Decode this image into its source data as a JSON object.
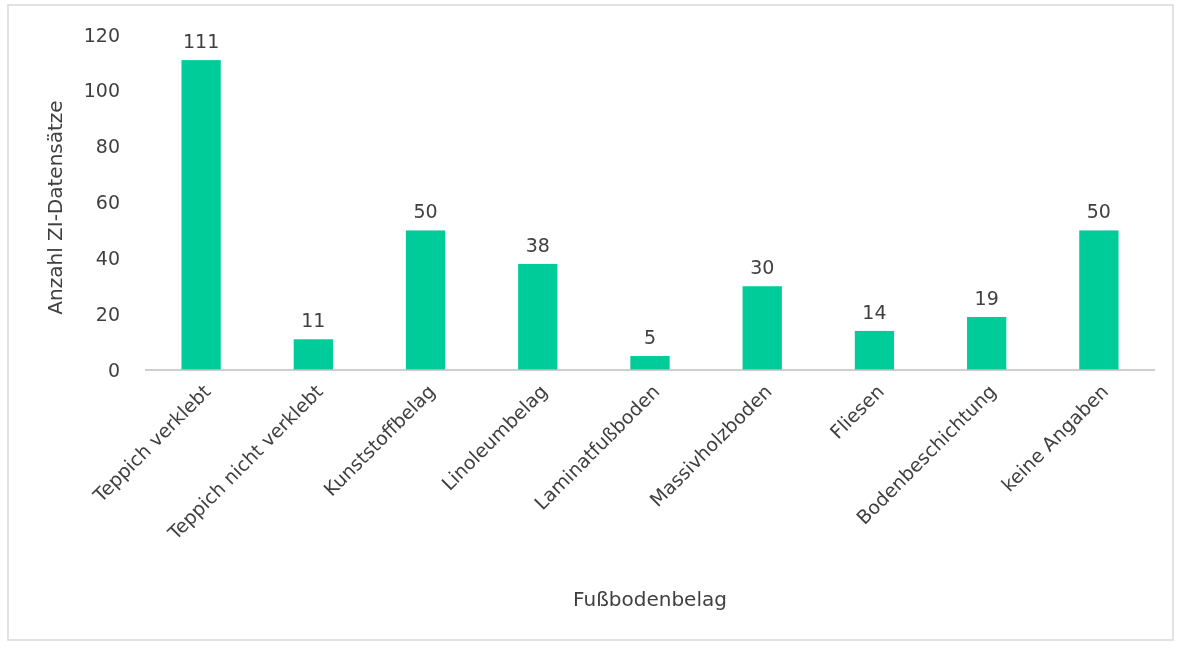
{
  "chart_data": {
    "type": "bar",
    "xlabel": "Fußbodenbelag",
    "ylabel": "Anzahl ZI-Datensätze",
    "categories": [
      "Teppich verklebt",
      "Teppich nicht verklebt",
      "Kunststoffbelag",
      "Linoleumbelag",
      "Laminatfußboden",
      "Massivholzboden",
      "Fliesen",
      "Bodenbeschichtung",
      "keine Angaben"
    ],
    "values": [
      111,
      11,
      50,
      38,
      5,
      30,
      14,
      19,
      50
    ],
    "color": "#00cc99",
    "ylim": [
      0,
      120
    ],
    "yticks": [
      0,
      20,
      40,
      60,
      80,
      100,
      120
    ],
    "grid": false,
    "data_labels": true
  }
}
